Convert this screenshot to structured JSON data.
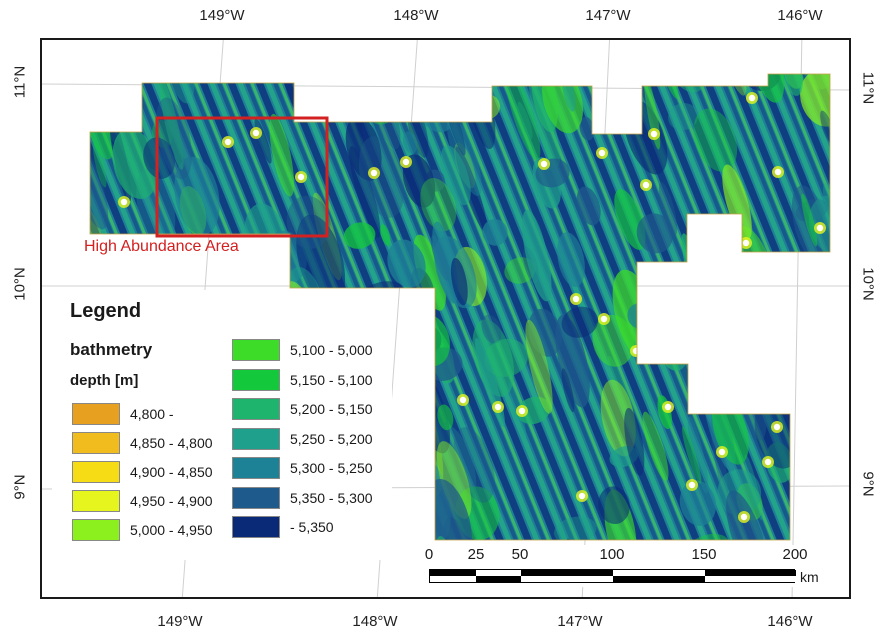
{
  "map": {
    "lon_top": [
      "149°W",
      "148°W",
      "147°W",
      "146°W"
    ],
    "lon_bottom": [
      "149°W",
      "148°W",
      "147°W",
      "146°W"
    ],
    "lat_left": [
      "11°N",
      "10°N",
      "9°N"
    ],
    "lat_right": [
      "11°N",
      "10°N",
      "9°N"
    ],
    "area_label": "High Abundance Area",
    "area_outline_color": "#d32020"
  },
  "legend": {
    "title": "Legend",
    "layer": "bathmetry",
    "field": "depth [m]",
    "classes": [
      {
        "label": "4,800 -",
        "color": "#e8a020"
      },
      {
        "label": "4,850 - 4,800",
        "color": "#f0bc1e"
      },
      {
        "label": "4,900 - 4,850",
        "color": "#f5dc14"
      },
      {
        "label": "4,950 - 4,900",
        "color": "#e6f51e"
      },
      {
        "label": "5,000 - 4,950",
        "color": "#8cf01e"
      },
      {
        "label": "5,100 - 5,000",
        "color": "#3cdc28"
      },
      {
        "label": "5,150 - 5,100",
        "color": "#14c83c"
      },
      {
        "label": "5,200 - 5,150",
        "color": "#1eb46e"
      },
      {
        "label": "5,250 - 5,200",
        "color": "#1ea08c"
      },
      {
        "label": "5,300 - 5,250",
        "color": "#1e8296"
      },
      {
        "label": "5,350 - 5,300",
        "color": "#1e5a8c"
      },
      {
        "label": "- 5,350",
        "color": "#0a2a78"
      }
    ]
  },
  "scale": {
    "ticks": [
      "0",
      "25",
      "50",
      "100",
      "150",
      "200"
    ],
    "unit": "km"
  }
}
